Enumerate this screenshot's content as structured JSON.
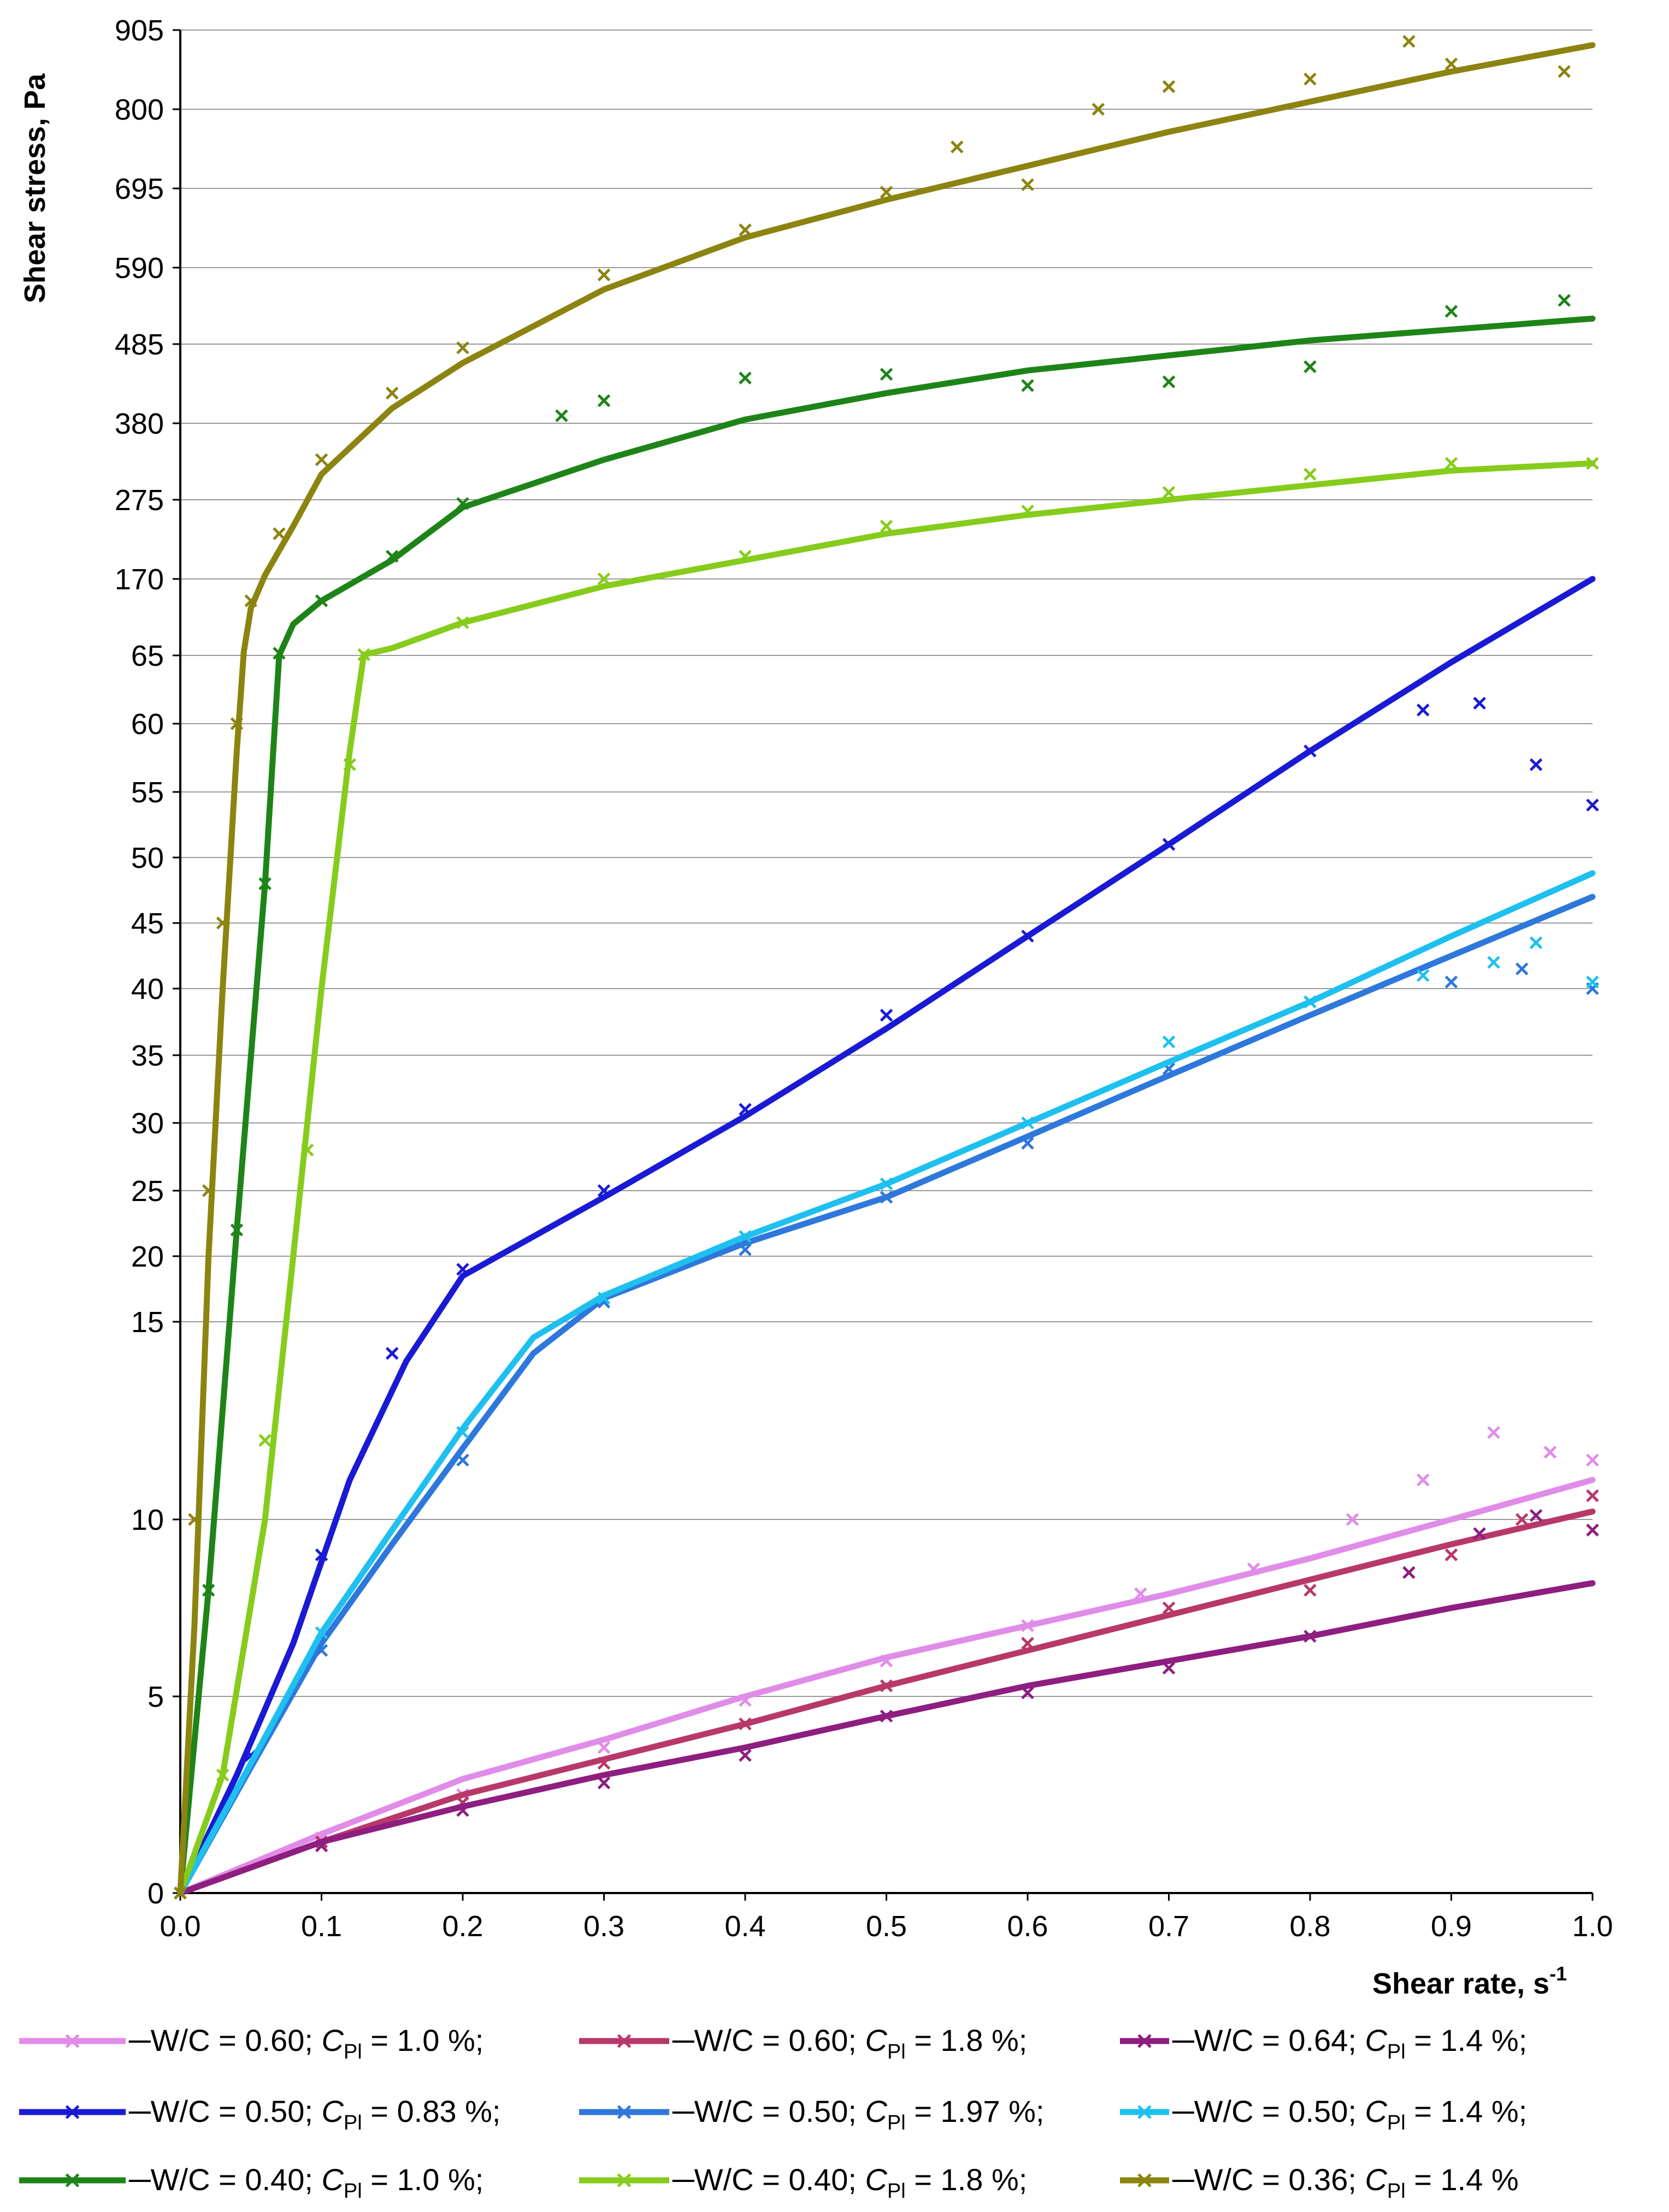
{
  "chart_data": {
    "type": "line",
    "title": "",
    "ylabel": "Shear stress, Pa",
    "xlabel": "Shear rate, s",
    "xlabel_superscript": "-1",
    "xlim": [
      0,
      1.0
    ],
    "x_ticks": [
      "0.0",
      "0.1",
      "0.2",
      "0.3",
      "0.4",
      "0.5",
      "0.6",
      "0.7",
      "0.8",
      "0.9",
      "1.0"
    ],
    "y_scale": "piecewise (labels as printed)",
    "y_ticks": [
      "0",
      "5",
      "10",
      "15",
      "20",
      "25",
      "30",
      "35",
      "40",
      "45",
      "50",
      "55",
      "60",
      "65",
      "170",
      "275",
      "380",
      "485",
      "590",
      "695",
      "800",
      "905"
    ],
    "grid": "horizontal",
    "legend_placement": "bottom",
    "series": [
      {
        "name": "W/C = 0.60; C = 1.0 %",
        "w_c": "W/C = 0.60",
        "cpl": "1.0 %",
        "color": "#E08CE8",
        "fit": [
          [
            0,
            0
          ],
          [
            0.1,
            1.5
          ],
          [
            0.2,
            2.9
          ],
          [
            0.3,
            3.9
          ],
          [
            0.4,
            5
          ],
          [
            0.5,
            6.1
          ],
          [
            0.6,
            7
          ],
          [
            0.7,
            7.9
          ],
          [
            0.8,
            8.9
          ],
          [
            0.9,
            10
          ],
          [
            1.0,
            11
          ]
        ],
        "meas": [
          [
            0,
            0
          ],
          [
            0.1,
            1.4
          ],
          [
            0.2,
            2.5
          ],
          [
            0.3,
            3.7
          ],
          [
            0.4,
            4.9
          ],
          [
            0.5,
            6
          ],
          [
            0.6,
            7
          ],
          [
            0.68,
            7.9
          ],
          [
            0.76,
            8.6
          ],
          [
            0.83,
            10
          ],
          [
            0.88,
            11
          ],
          [
            0.93,
            12.2
          ],
          [
            0.97,
            11.7
          ],
          [
            1.0,
            11.5
          ]
        ]
      },
      {
        "name": "W/C = 0.60; C = 1.8 %",
        "w_c": "W/C = 0.60",
        "cpl": "1.8 %",
        "color": "#B8386A",
        "fit": [
          [
            0,
            0
          ],
          [
            0.1,
            1.3
          ],
          [
            0.2,
            2.5
          ],
          [
            0.3,
            3.4
          ],
          [
            0.4,
            4.3
          ],
          [
            0.5,
            5.3
          ],
          [
            0.6,
            6.3
          ],
          [
            0.7,
            7.3
          ],
          [
            0.8,
            8.3
          ],
          [
            0.9,
            9.3
          ],
          [
            1.0,
            10.2
          ]
        ],
        "meas": [
          [
            0,
            0
          ],
          [
            0.1,
            1.3
          ],
          [
            0.2,
            2.3
          ],
          [
            0.3,
            3.3
          ],
          [
            0.4,
            4.3
          ],
          [
            0.5,
            5.3
          ],
          [
            0.6,
            6.5
          ],
          [
            0.7,
            7.5
          ],
          [
            0.8,
            8
          ],
          [
            0.9,
            9
          ],
          [
            0.95,
            10
          ],
          [
            1.0,
            10.6
          ]
        ]
      },
      {
        "name": "W/C = 0.64; C = 1.4 %",
        "w_c": "W/C = 0.64",
        "cpl": "1.4 %",
        "color": "#8E1E80",
        "fit": [
          [
            0,
            0
          ],
          [
            0.1,
            1.3
          ],
          [
            0.2,
            2.2
          ],
          [
            0.3,
            3
          ],
          [
            0.4,
            3.7
          ],
          [
            0.5,
            4.5
          ],
          [
            0.6,
            5.3
          ],
          [
            0.7,
            6
          ],
          [
            0.8,
            6.7
          ],
          [
            0.9,
            7.5
          ],
          [
            1.0,
            8.2
          ]
        ],
        "meas": [
          [
            0,
            0
          ],
          [
            0.1,
            1.2
          ],
          [
            0.2,
            2.1
          ],
          [
            0.3,
            2.8
          ],
          [
            0.4,
            3.5
          ],
          [
            0.5,
            4.5
          ],
          [
            0.6,
            5.1
          ],
          [
            0.7,
            5.8
          ],
          [
            0.8,
            6.7
          ],
          [
            0.87,
            8.5
          ],
          [
            0.92,
            9.6
          ],
          [
            0.96,
            10.1
          ],
          [
            1.0,
            9.7
          ]
        ]
      },
      {
        "name": "W/C = 0.50; C = 0.83 %",
        "w_c": "W/C = 0.50",
        "cpl": "0.83 %",
        "color": "#1A1AD4",
        "fit": [
          [
            0,
            0
          ],
          [
            0.04,
            3
          ],
          [
            0.08,
            6.5
          ],
          [
            0.12,
            11
          ],
          [
            0.16,
            14
          ],
          [
            0.2,
            18.5
          ],
          [
            0.3,
            24.5
          ],
          [
            0.4,
            30.5
          ],
          [
            0.5,
            37
          ],
          [
            0.6,
            44
          ],
          [
            0.7,
            51
          ],
          [
            0.8,
            58
          ],
          [
            0.9,
            64.5
          ],
          [
            1.0,
            170
          ]
        ],
        "meas": [
          [
            0,
            0
          ],
          [
            0.05,
            3.5
          ],
          [
            0.1,
            9
          ],
          [
            0.15,
            14.2
          ],
          [
            0.2,
            19
          ],
          [
            0.3,
            25
          ],
          [
            0.4,
            31
          ],
          [
            0.5,
            38
          ],
          [
            0.6,
            44
          ],
          [
            0.7,
            51
          ],
          [
            0.8,
            58
          ],
          [
            0.88,
            61
          ],
          [
            0.92,
            61.5
          ],
          [
            0.96,
            57
          ],
          [
            1.0,
            54
          ]
        ]
      },
      {
        "name": "W/C = 0.50; C = 1.97 %",
        "w_c": "W/C = 0.50",
        "cpl": "1.97 %",
        "color": "#2E78DC",
        "fit": [
          [
            0,
            0
          ],
          [
            0.05,
            3.2
          ],
          [
            0.1,
            6.5
          ],
          [
            0.15,
            9.3
          ],
          [
            0.2,
            11.8
          ],
          [
            0.25,
            14.2
          ],
          [
            0.3,
            16.8
          ],
          [
            0.4,
            21
          ],
          [
            0.5,
            24.5
          ],
          [
            0.6,
            29
          ],
          [
            0.7,
            33.5
          ],
          [
            0.8,
            38
          ],
          [
            0.9,
            42.5
          ],
          [
            1.0,
            47
          ]
        ],
        "meas": [
          [
            0,
            0
          ],
          [
            0.1,
            6.3
          ],
          [
            0.2,
            11.5
          ],
          [
            0.3,
            16.5
          ],
          [
            0.4,
            20.5
          ],
          [
            0.5,
            24.5
          ],
          [
            0.6,
            28.5
          ],
          [
            0.7,
            34
          ],
          [
            0.8,
            39
          ],
          [
            0.9,
            40.5
          ],
          [
            0.95,
            41.5
          ],
          [
            1.0,
            40
          ]
        ]
      },
      {
        "name": "W/C = 0.50; C = 1.4 %",
        "w_c": "W/C = 0.50",
        "cpl": "1.4 %",
        "color": "#1EC0F0",
        "fit": [
          [
            0,
            0
          ],
          [
            0.05,
            3.3
          ],
          [
            0.1,
            6.8
          ],
          [
            0.15,
            9.7
          ],
          [
            0.2,
            12.3
          ],
          [
            0.25,
            14.6
          ],
          [
            0.3,
            17
          ],
          [
            0.4,
            21.5
          ],
          [
            0.5,
            25.5
          ],
          [
            0.6,
            30
          ],
          [
            0.7,
            34.5
          ],
          [
            0.8,
            39
          ],
          [
            0.9,
            44
          ],
          [
            1.0,
            48.8
          ]
        ],
        "meas": [
          [
            0,
            0
          ],
          [
            0.1,
            6.8
          ],
          [
            0.2,
            12.2
          ],
          [
            0.3,
            16.8
          ],
          [
            0.4,
            21.5
          ],
          [
            0.5,
            25.5
          ],
          [
            0.6,
            30
          ],
          [
            0.7,
            36
          ],
          [
            0.8,
            39
          ],
          [
            0.88,
            41
          ],
          [
            0.93,
            42
          ],
          [
            0.96,
            43.5
          ],
          [
            1.0,
            40.5
          ]
        ]
      },
      {
        "name": "W/C = 0.40; C = 1.0 %",
        "w_c": "W/C = 0.40",
        "cpl": "1.0 %",
        "color": "#1E8418",
        "fit": [
          [
            0,
            0
          ],
          [
            0.02,
            8
          ],
          [
            0.04,
            22
          ],
          [
            0.06,
            48
          ],
          [
            0.07,
            65
          ],
          [
            0.08,
            108
          ],
          [
            0.1,
            140
          ],
          [
            0.15,
            195
          ],
          [
            0.2,
            265
          ],
          [
            0.3,
            330
          ],
          [
            0.4,
            385
          ],
          [
            0.5,
            420
          ],
          [
            0.6,
            450
          ],
          [
            0.7,
            470
          ],
          [
            0.8,
            490
          ],
          [
            0.9,
            505
          ],
          [
            1.0,
            520
          ]
        ],
        "meas": [
          [
            0,
            0
          ],
          [
            0.02,
            8
          ],
          [
            0.04,
            22
          ],
          [
            0.06,
            48
          ],
          [
            0.07,
            68
          ],
          [
            0.1,
            140
          ],
          [
            0.15,
            200
          ],
          [
            0.2,
            270
          ],
          [
            0.27,
            390
          ],
          [
            0.3,
            410
          ],
          [
            0.4,
            440
          ],
          [
            0.5,
            445
          ],
          [
            0.6,
            430
          ],
          [
            0.7,
            435
          ],
          [
            0.8,
            455
          ],
          [
            0.9,
            530
          ],
          [
            0.98,
            545
          ]
        ]
      },
      {
        "name": "W/C = 0.40; C = 1.8 %",
        "w_c": "W/C = 0.40",
        "cpl": "1.8 %",
        "color": "#86CC1C",
        "fit": [
          [
            0,
            0
          ],
          [
            0.03,
            3
          ],
          [
            0.06,
            10
          ],
          [
            0.08,
            20
          ],
          [
            0.1,
            40
          ],
          [
            0.12,
            58
          ],
          [
            0.13,
            66
          ],
          [
            0.15,
            75
          ],
          [
            0.2,
            110
          ],
          [
            0.3,
            160
          ],
          [
            0.4,
            195
          ],
          [
            0.5,
            230
          ],
          [
            0.6,
            255
          ],
          [
            0.7,
            275
          ],
          [
            0.8,
            295
          ],
          [
            0.9,
            315
          ],
          [
            1.0,
            325
          ]
        ],
        "meas": [
          [
            0,
            0
          ],
          [
            0.03,
            3
          ],
          [
            0.06,
            12
          ],
          [
            0.09,
            28
          ],
          [
            0.12,
            57
          ],
          [
            0.13,
            66
          ],
          [
            0.2,
            110
          ],
          [
            0.3,
            170
          ],
          [
            0.4,
            200
          ],
          [
            0.5,
            240
          ],
          [
            0.6,
            260
          ],
          [
            0.7,
            285
          ],
          [
            0.8,
            310
          ],
          [
            0.9,
            325
          ],
          [
            1.0,
            325
          ]
        ]
      },
      {
        "name": "W/C = 0.36; C = 1.4 %",
        "w_c": "W/C = 0.36",
        "cpl": "1.4 %",
        "color": "#8C8410",
        "fit": [
          [
            0,
            0
          ],
          [
            0.01,
            7
          ],
          [
            0.02,
            20
          ],
          [
            0.03,
            40
          ],
          [
            0.04,
            58
          ],
          [
            0.045,
            70
          ],
          [
            0.05,
            130
          ],
          [
            0.06,
            175
          ],
          [
            0.08,
            240
          ],
          [
            0.1,
            310
          ],
          [
            0.15,
            400
          ],
          [
            0.2,
            460
          ],
          [
            0.3,
            560
          ],
          [
            0.4,
            630
          ],
          [
            0.5,
            680
          ],
          [
            0.6,
            725
          ],
          [
            0.7,
            770
          ],
          [
            0.8,
            810
          ],
          [
            0.9,
            850
          ],
          [
            1.0,
            885
          ]
        ],
        "meas": [
          [
            0,
            0
          ],
          [
            0.01,
            10
          ],
          [
            0.02,
            25
          ],
          [
            0.03,
            45
          ],
          [
            0.04,
            60
          ],
          [
            0.05,
            140
          ],
          [
            0.07,
            230
          ],
          [
            0.1,
            330
          ],
          [
            0.15,
            420
          ],
          [
            0.2,
            480
          ],
          [
            0.3,
            580
          ],
          [
            0.4,
            640
          ],
          [
            0.5,
            690
          ],
          [
            0.55,
            750
          ],
          [
            0.6,
            700
          ],
          [
            0.65,
            800
          ],
          [
            0.7,
            830
          ],
          [
            0.8,
            840
          ],
          [
            0.87,
            890
          ],
          [
            0.9,
            860
          ],
          [
            0.98,
            850
          ]
        ]
      }
    ]
  },
  "legend_rows": [
    [
      {
        "pre": "─W/C = 0.60; ",
        "var": "C",
        "sub": "Pl",
        "post": " = 1.0 %;"
      },
      {
        "pre": "─W/C = 0.60; ",
        "var": "C",
        "sub": "Pl",
        "post": " = 1.8 %;"
      },
      {
        "pre": "─W/C = 0.64; ",
        "var": "C",
        "sub": "Pl",
        "post": " = 1.4 %;"
      }
    ],
    [
      {
        "pre": "─W/C = 0.50; ",
        "var": "C",
        "sub": "Pl",
        "post": " = 0.83 %;"
      },
      {
        "pre": "─W/C = 0.50; ",
        "var": "C",
        "sub": "Pl",
        "post": " = 1.97 %;"
      },
      {
        "pre": "─W/C = 0.50; ",
        "var": "C",
        "sub": "Pl",
        "post": " = 1.4 %;"
      }
    ],
    [
      {
        "pre": "─W/C = 0.40; ",
        "var": "C",
        "sub": "Pl",
        "post": " = 1.0 %;"
      },
      {
        "pre": "─W/C = 0.40; ",
        "var": "C",
        "sub": "Pl",
        "post": " = 1.8 %;"
      },
      {
        "pre": "─W/C = 0.36; ",
        "var": "C",
        "sub": "Pl",
        "post": " = 1.4 %"
      }
    ]
  ]
}
